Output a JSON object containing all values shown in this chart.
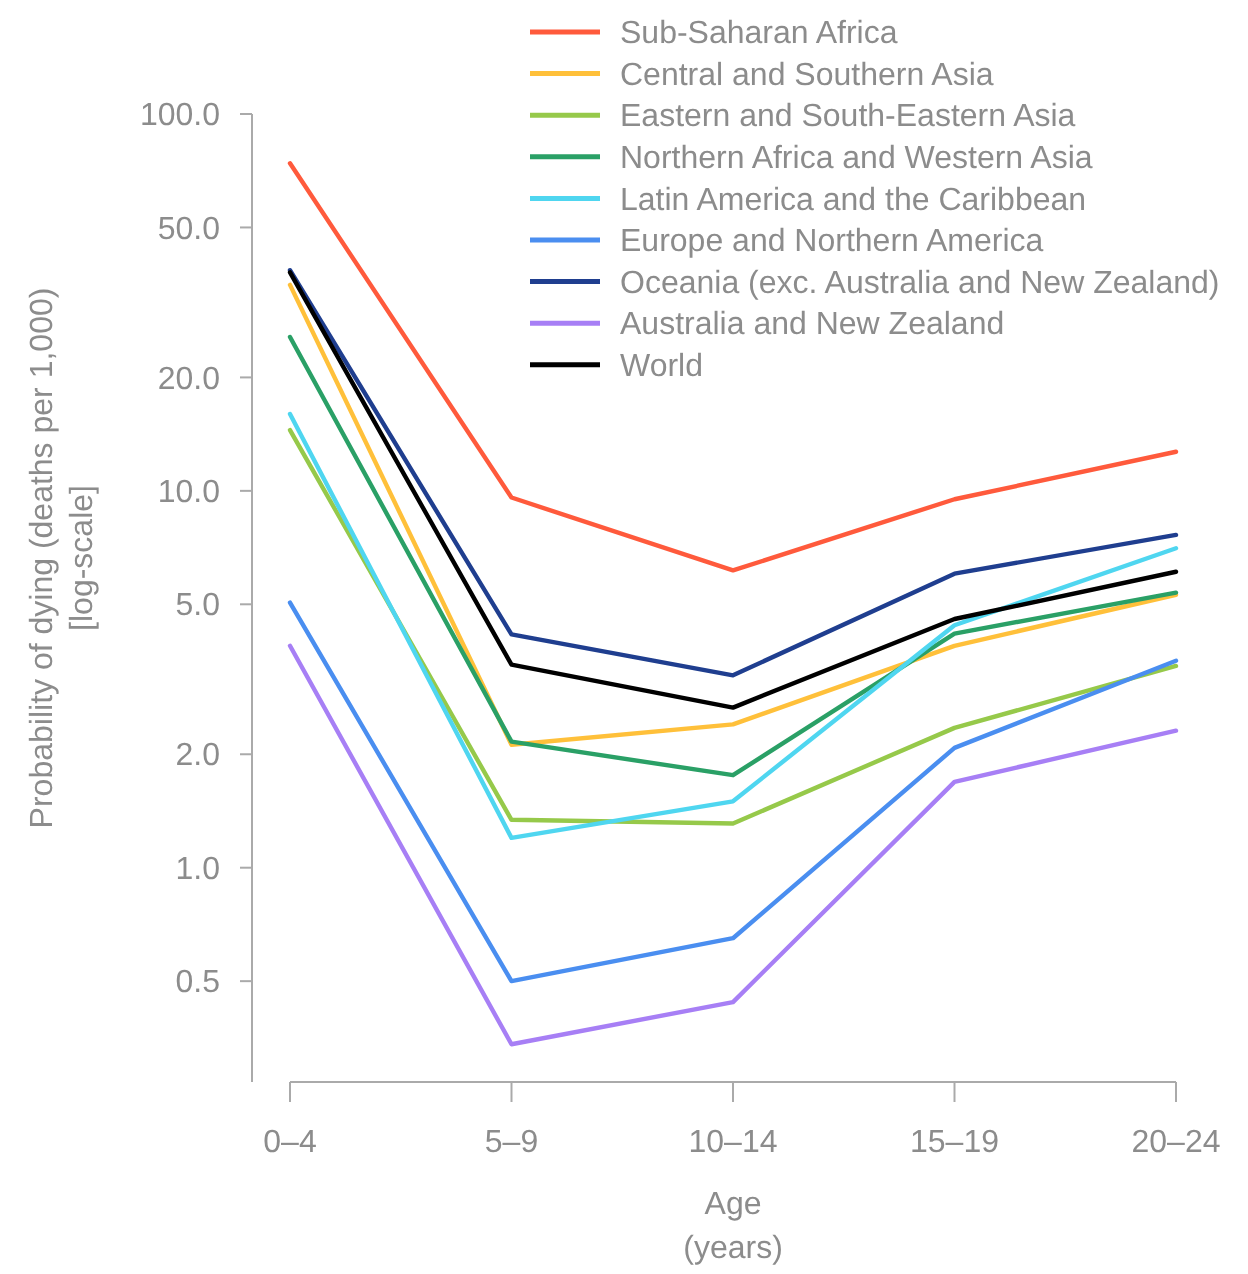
{
  "chart_data": {
    "type": "line",
    "xlabel": "Age\n(years)",
    "ylabel": "Probability of dying (deaths per 1,000)\n[log-scale]",
    "categories": [
      "0–4",
      "5–9",
      "10–14",
      "15–19",
      "20–24"
    ],
    "log": true,
    "ylim": [
      0.27,
      100
    ],
    "yticks": [
      0.5,
      {
        "value": 1,
        "label": "1.0"
      },
      {
        "value": 2,
        "label": "2.0"
      },
      {
        "value": 5,
        "label": "5.0"
      },
      {
        "value": 10,
        "label": "10.0"
      },
      {
        "value": 20,
        "label": "20.0"
      },
      {
        "value": 50,
        "label": "50.0"
      },
      {
        "value": 100,
        "label": "100.0"
      }
    ],
    "grid": false,
    "legend": "top right",
    "marker": "none",
    "line_style": "solid",
    "series": [
      {
        "name": "Sub-Saharan Africa",
        "color": "#ff5a3c",
        "values": [
          74,
          9.6,
          6.15,
          9.5,
          12.7
        ]
      },
      {
        "name": "Central and Southern Asia",
        "color": "#ffc03a",
        "values": [
          35.2,
          2.12,
          2.4,
          3.88,
          5.3
        ]
      },
      {
        "name": "Eastern and South-Eastern Asia",
        "color": "#96c94a",
        "values": [
          14.5,
          1.34,
          1.31,
          2.35,
          3.43
        ]
      },
      {
        "name": "Northern Africa and Western Asia",
        "color": "#2aa066",
        "values": [
          25.6,
          2.16,
          1.76,
          4.18,
          5.37
        ]
      },
      {
        "name": "Latin America and the Caribbean",
        "color": "#4fd6f0",
        "values": [
          16,
          1.2,
          1.5,
          4.4,
          7.04
        ]
      },
      {
        "name": "Europe and Northern America",
        "color": "#4a8ef0",
        "values": [
          5.05,
          0.5,
          0.65,
          2.08,
          3.54
        ]
      },
      {
        "name": "Oceania (exc. Australia and New Zealand)",
        "color": "#1f3e8f",
        "values": [
          38.5,
          4.16,
          3.24,
          6.03,
          7.64
        ]
      },
      {
        "name": "Australia and New Zealand",
        "color": "#a77ff5",
        "values": [
          3.88,
          0.34,
          0.44,
          1.69,
          2.31
        ]
      },
      {
        "name": "World",
        "color": "#000000",
        "values": [
          38,
          3.46,
          2.66,
          4.57,
          6.1
        ]
      }
    ]
  }
}
